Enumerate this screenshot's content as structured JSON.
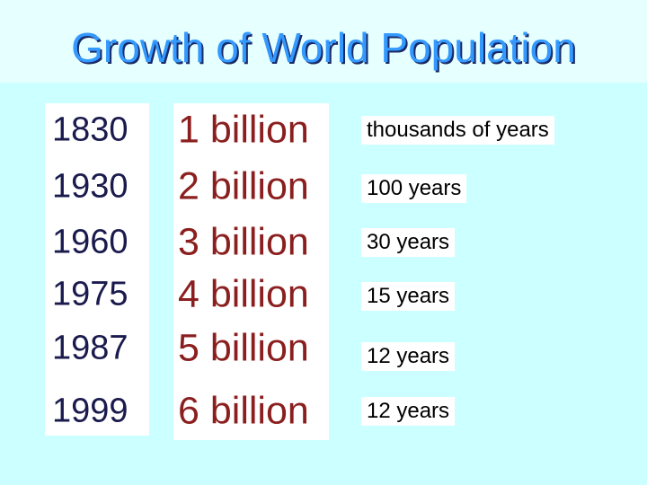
{
  "title": "Growth of World Population",
  "rows": [
    {
      "year": "1830",
      "population": "1 billion",
      "interval": "thousands of years"
    },
    {
      "year": "1930",
      "population": "2 billion",
      "interval": "100 years"
    },
    {
      "year": "1960",
      "population": "3 billion",
      "interval": "30 years"
    },
    {
      "year": "1975",
      "population": "4 billion",
      "interval": "15 years"
    },
    {
      "year": "1987",
      "population": "5 billion",
      "interval": "12 years"
    },
    {
      "year": "1999",
      "population": "6 billion",
      "interval": "12 years"
    }
  ]
}
